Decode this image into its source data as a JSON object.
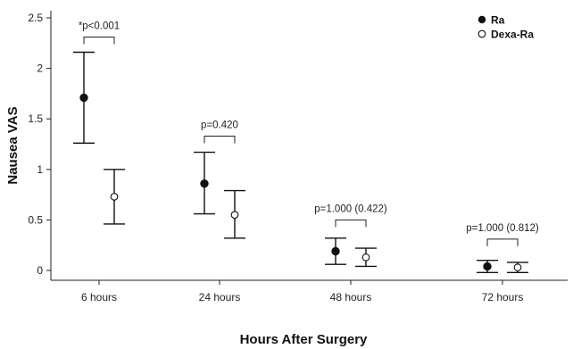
{
  "chart_data": {
    "type": "scatter",
    "title": "",
    "xlabel": "Hours After Surgery",
    "ylabel": "Nausea VAS",
    "categories": [
      "6 hours",
      "24 hours",
      "48 hours",
      "72 hours"
    ],
    "ylim": [
      -0.1,
      2.5
    ],
    "yticks": [
      "0",
      "0.5",
      "1",
      "1.5",
      "2",
      "2.5"
    ],
    "grid": false,
    "legend_position": "top-right",
    "series": [
      {
        "name": "Ra",
        "marker": "filled-circle",
        "color": "#111111",
        "mean": [
          1.71,
          0.86,
          0.19,
          0.04
        ],
        "upper": [
          2.16,
          1.17,
          0.32,
          0.1
        ],
        "lower": [
          1.26,
          0.56,
          0.06,
          -0.02
        ]
      },
      {
        "name": "Dexa-Ra",
        "marker": "open-circle",
        "color": "#111111",
        "mean": [
          0.73,
          0.55,
          0.13,
          0.03
        ],
        "upper": [
          1.0,
          0.79,
          0.22,
          0.08
        ],
        "lower": [
          0.46,
          0.32,
          0.04,
          -0.02
        ]
      }
    ],
    "annotations": [
      {
        "category": "6 hours",
        "text": "*p<0.001",
        "level": 2.31
      },
      {
        "category": "24 hours",
        "text": "p=0.420",
        "level": 1.33
      },
      {
        "category": "48 hours",
        "text": "p=1.000 (0.422)",
        "level": 0.5
      },
      {
        "category": "72 hours",
        "text": "p=1.000 (0.812)",
        "level": 0.31
      }
    ]
  }
}
